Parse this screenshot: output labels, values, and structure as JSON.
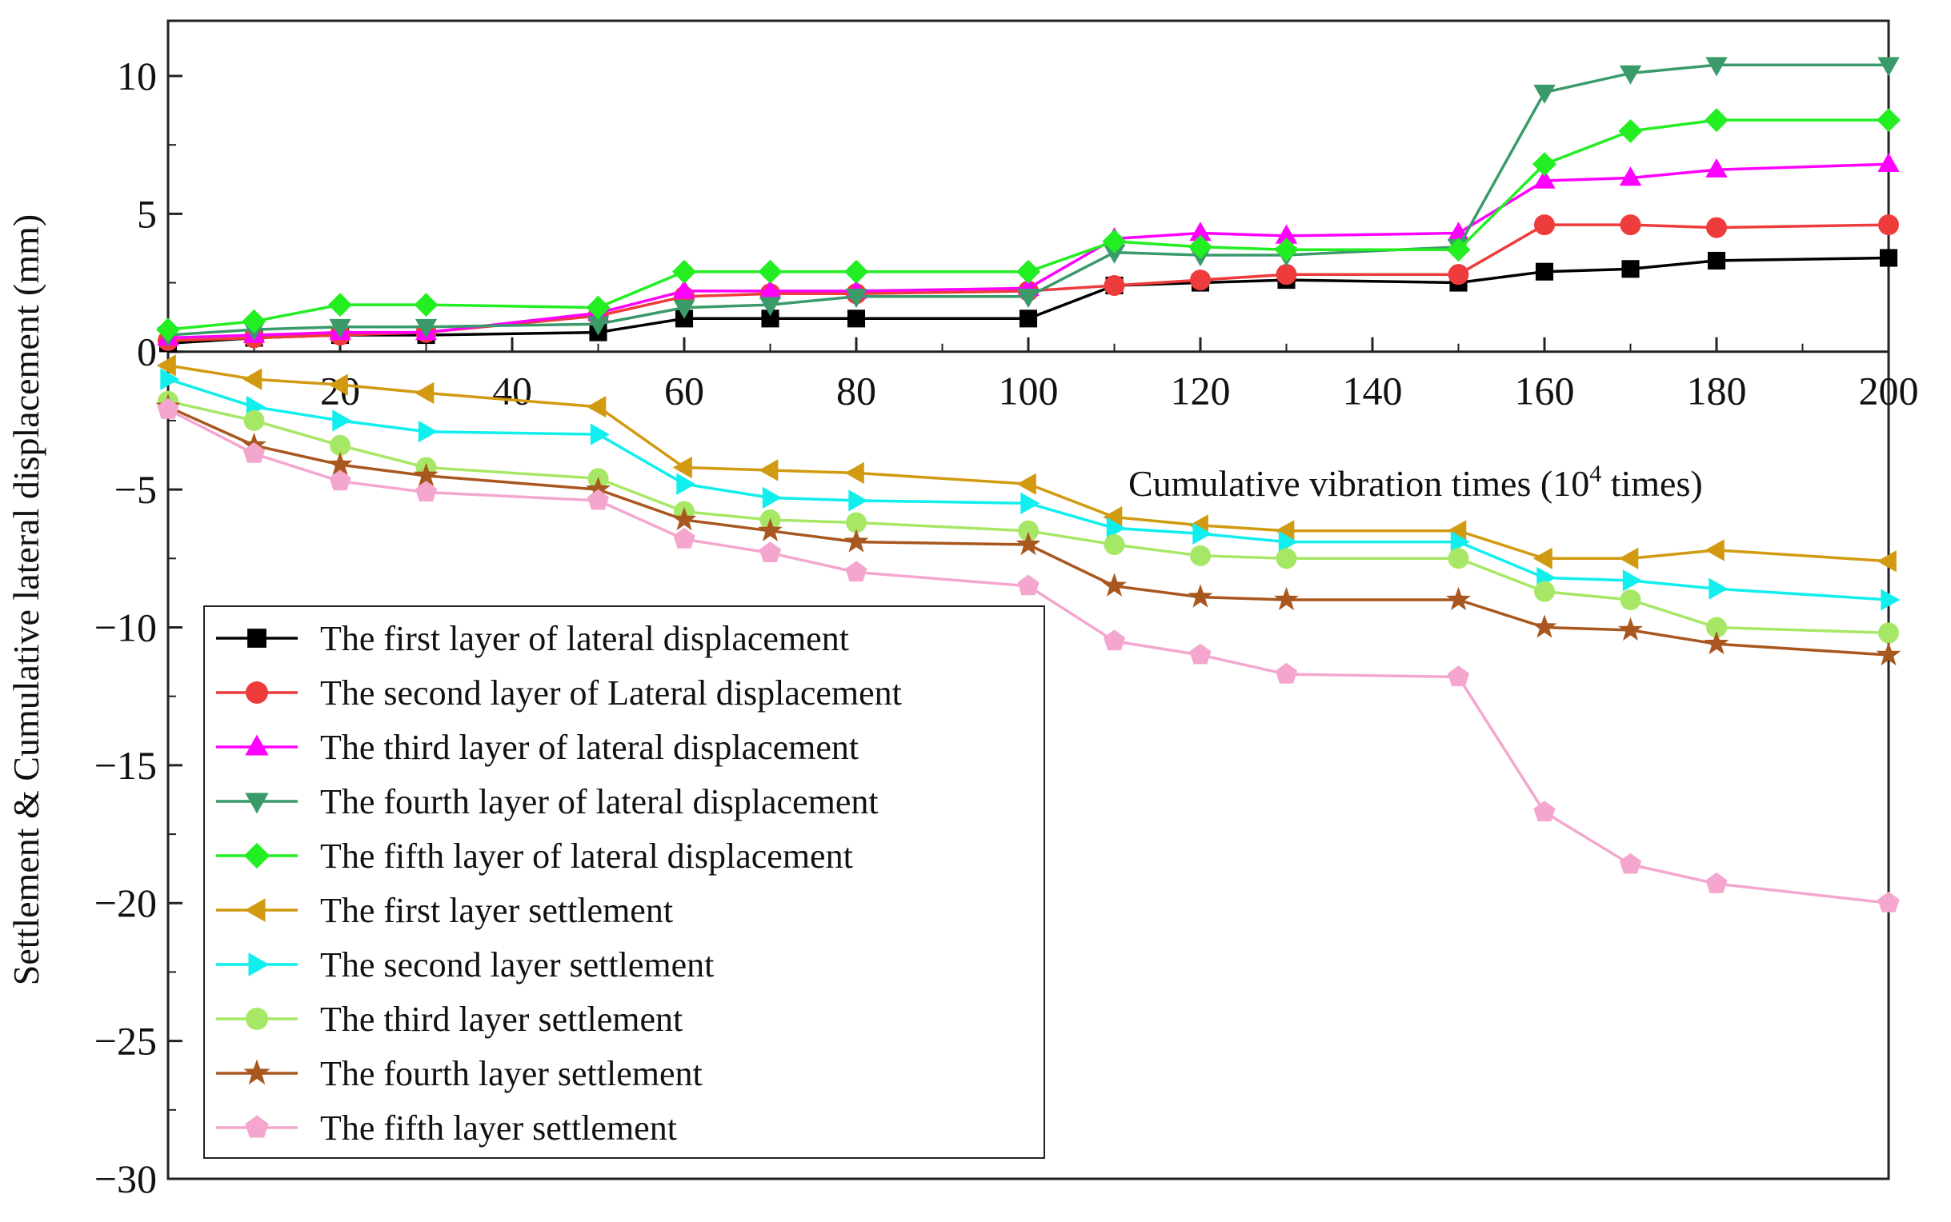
{
  "chart_data": {
    "type": "line",
    "ylabel": "Settlement & Cumulative lateral displacement (mm)",
    "xlabel_main": "Cumulative vibration times (10",
    "xlabel_sup": "4",
    "xlabel_tail": " times)",
    "xlim": [
      0,
      200
    ],
    "ylim": [
      -30,
      12
    ],
    "x_ticks": [
      20,
      40,
      60,
      80,
      100,
      120,
      140,
      160,
      180,
      200
    ],
    "x_tick_labels": [
      "20",
      "40",
      "60",
      "80",
      "100",
      "120",
      "140",
      "160",
      "180",
      "200"
    ],
    "y_ticks": [
      10,
      5,
      0,
      -5,
      -10,
      -15,
      -20,
      -25,
      -30
    ],
    "y_tick_labels": [
      "10",
      "5",
      "0",
      "−5",
      "−10",
      "−15",
      "−20",
      "−25",
      "−30"
    ],
    "x": [
      0,
      10,
      20,
      30,
      50,
      60,
      70,
      80,
      100,
      110,
      120,
      130,
      150,
      160,
      170,
      180,
      200
    ],
    "series": [
      {
        "name": "The first layer of lateral displacement",
        "color": "#000000",
        "marker": "square",
        "values": [
          0.3,
          0.5,
          0.6,
          0.6,
          0.7,
          1.2,
          1.2,
          1.2,
          1.2,
          2.4,
          2.5,
          2.6,
          2.5,
          2.9,
          3.0,
          3.3,
          3.4
        ]
      },
      {
        "name": "The second layer of Lateral displacement",
        "color": "#ee3b3b",
        "marker": "circle",
        "values": [
          0.4,
          0.5,
          0.6,
          0.7,
          1.3,
          2.0,
          2.1,
          2.1,
          2.2,
          2.4,
          2.6,
          2.8,
          2.8,
          4.6,
          4.6,
          4.5,
          4.6
        ]
      },
      {
        "name": "The third layer of lateral displacement",
        "color": "#ff00ff",
        "marker": "triangle-up",
        "values": [
          0.5,
          0.6,
          0.7,
          0.7,
          1.4,
          2.2,
          2.2,
          2.2,
          2.3,
          4.1,
          4.3,
          4.2,
          4.3,
          6.2,
          6.3,
          6.6,
          6.8
        ]
      },
      {
        "name": "The fourth layer of lateral displacement",
        "color": "#3a9a6a",
        "marker": "triangle-down",
        "values": [
          0.6,
          0.8,
          0.9,
          0.9,
          1.0,
          1.6,
          1.7,
          2.0,
          2.0,
          3.6,
          3.5,
          3.5,
          3.8,
          9.4,
          10.1,
          10.4,
          10.4
        ]
      },
      {
        "name": "The fifth layer of lateral displacement",
        "color": "#22ee22",
        "marker": "diamond",
        "values": [
          0.8,
          1.1,
          1.7,
          1.7,
          1.6,
          2.9,
          2.9,
          2.9,
          2.9,
          4.0,
          3.8,
          3.7,
          3.7,
          6.8,
          8.0,
          8.4,
          8.4
        ]
      },
      {
        "name": "The first layer settlement",
        "color": "#d19a10",
        "marker": "triangle-left",
        "values": [
          -0.5,
          -1.0,
          -1.2,
          -1.5,
          -2.0,
          -4.2,
          -4.3,
          -4.4,
          -4.8,
          -6.0,
          -6.3,
          -6.5,
          -6.5,
          -7.5,
          -7.5,
          -7.2,
          -7.6
        ]
      },
      {
        "name": "The second layer settlement",
        "color": "#11eeee",
        "marker": "triangle-right",
        "values": [
          -1.0,
          -2.0,
          -2.5,
          -2.9,
          -3.0,
          -4.8,
          -5.3,
          -5.4,
          -5.5,
          -6.4,
          -6.6,
          -6.9,
          -6.9,
          -8.2,
          -8.3,
          -8.6,
          -9.0
        ]
      },
      {
        "name": "The third layer settlement",
        "color": "#a6e865",
        "marker": "circle",
        "values": [
          -1.8,
          -2.5,
          -3.4,
          -4.2,
          -4.6,
          -5.8,
          -6.1,
          -6.2,
          -6.5,
          -7.0,
          -7.4,
          -7.5,
          -7.5,
          -8.7,
          -9.0,
          -10.0,
          -10.2
        ]
      },
      {
        "name": "The fourth layer settlement",
        "color": "#a8571e",
        "marker": "star",
        "values": [
          -2.0,
          -3.4,
          -4.1,
          -4.5,
          -5.0,
          -6.1,
          -6.5,
          -6.9,
          -7.0,
          -8.5,
          -8.9,
          -9.0,
          -9.0,
          -10.0,
          -10.1,
          -10.6,
          -11.0
        ]
      },
      {
        "name": "The fifth layer settlement",
        "color": "#f4a6cf",
        "marker": "pentagon",
        "values": [
          -2.1,
          -3.7,
          -4.7,
          -5.1,
          -5.4,
          -6.8,
          -7.3,
          -8.0,
          -8.5,
          -10.5,
          -11.0,
          -11.7,
          -11.8,
          -16.7,
          -18.6,
          -19.3,
          -20.0
        ]
      }
    ]
  }
}
